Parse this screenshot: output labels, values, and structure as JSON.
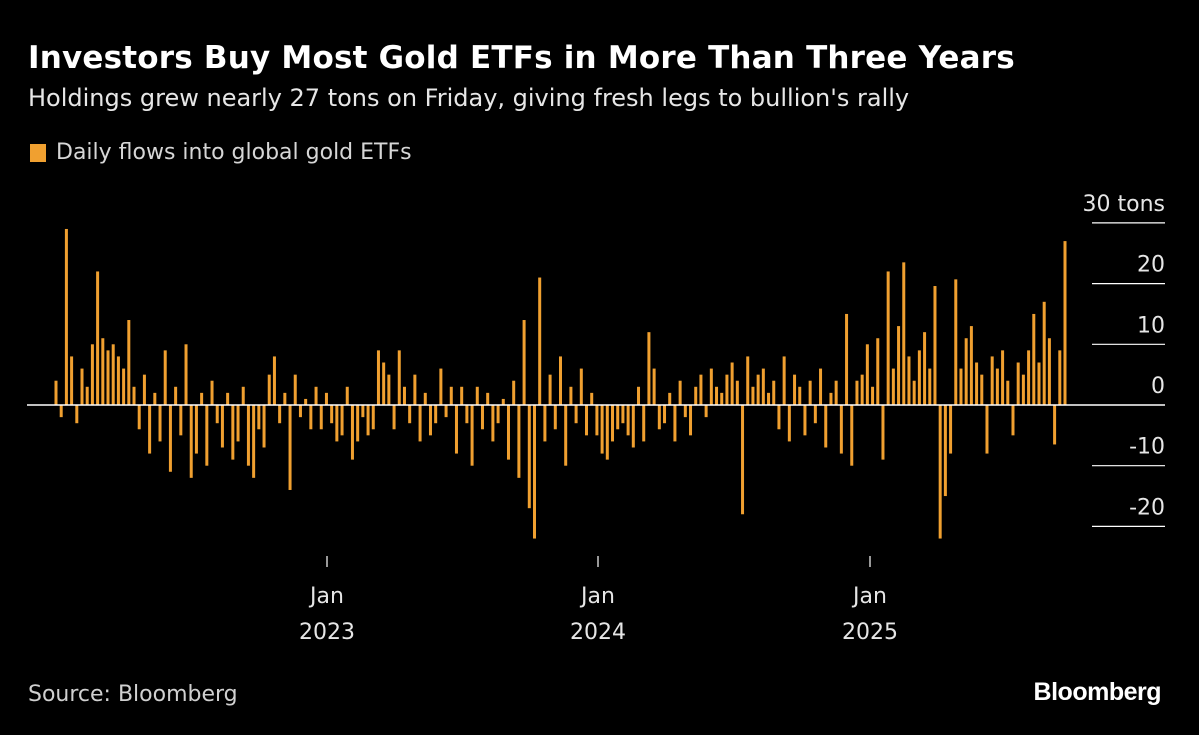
{
  "chart_data": {
    "type": "bar",
    "title": "Investors Buy Most Gold ETFs in More Than Three Years",
    "subtitle": "Holdings grew nearly 27 tons on Friday, giving fresh legs to bullion's rally",
    "legend": {
      "label": "Daily flows into global gold ETFs",
      "placement": "top-left"
    },
    "series": [
      {
        "name": "Daily flows into global gold ETFs",
        "color": "#f0a030",
        "values": [
          4,
          -2,
          29,
          8,
          -3,
          6,
          3,
          10,
          22,
          11,
          9,
          10,
          8,
          6,
          14,
          3,
          -4,
          5,
          -8,
          2,
          -6,
          9,
          -11,
          3,
          -5,
          10,
          -12,
          -8,
          2,
          -10,
          4,
          -3,
          -7,
          2,
          -9,
          -6,
          3,
          -10,
          -12,
          -4,
          -7,
          5,
          8,
          -3,
          2,
          -14,
          5,
          -2,
          1,
          -4,
          3,
          -4,
          2,
          -3,
          -6,
          -5,
          3,
          -9,
          -6,
          -2,
          -5,
          -4,
          9,
          7,
          5,
          -4,
          9,
          3,
          -3,
          5,
          -6,
          2,
          -5,
          -3,
          6,
          -2,
          3,
          -8,
          3,
          -3,
          -10,
          3,
          -4,
          2,
          -6,
          -3,
          1,
          -9,
          4,
          -12,
          14,
          -17,
          -22,
          21,
          -6,
          5,
          -4,
          8,
          -10,
          3,
          -3,
          6,
          -5,
          2,
          -5,
          -8,
          -9,
          -6,
          -4,
          -3,
          -5,
          -7,
          3,
          -6,
          12,
          6,
          -4,
          -3,
          2,
          -6,
          4,
          -2,
          -5,
          3,
          5,
          -2,
          6,
          3,
          2,
          5,
          7,
          4,
          -18,
          8,
          3,
          5,
          6,
          2,
          4,
          -4,
          8,
          -6,
          5,
          3,
          -5,
          4,
          -3,
          6,
          -7,
          2,
          4,
          -8,
          15,
          -10,
          4,
          5,
          10,
          3,
          11,
          -9,
          22,
          6,
          13,
          23.5,
          8,
          4,
          9,
          12,
          6,
          19.6,
          -22,
          -15,
          -8,
          20.7,
          6,
          11,
          13,
          7,
          5,
          -8,
          8,
          6,
          9,
          4,
          -5,
          7,
          5,
          9,
          15,
          7,
          17,
          11,
          -6.5,
          9,
          27
        ]
      }
    ],
    "x_range": [
      "2022-01",
      "2025-09"
    ],
    "x_ticks": [
      {
        "month": "Jan",
        "year": "2023",
        "date": "2023-01-01"
      },
      {
        "month": "Jan",
        "year": "2024",
        "date": "2024-01-01"
      },
      {
        "month": "Jan",
        "year": "2025",
        "date": "2025-01-01"
      }
    ],
    "y_ticks": [
      "30 tons",
      "20",
      "10",
      "0",
      "-10",
      "-20"
    ],
    "y_tick_values": [
      30,
      20,
      10,
      0,
      -10,
      -20
    ],
    "ylim": [
      -25,
      30
    ],
    "yunit": "tons",
    "grid": false,
    "axis_position": "right"
  },
  "footer": {
    "source": "Source: Bloomberg",
    "logo": "Bloomberg"
  },
  "colors": {
    "background": "#000000",
    "bar": "#f0a030",
    "zero_line": "#ffffff"
  }
}
